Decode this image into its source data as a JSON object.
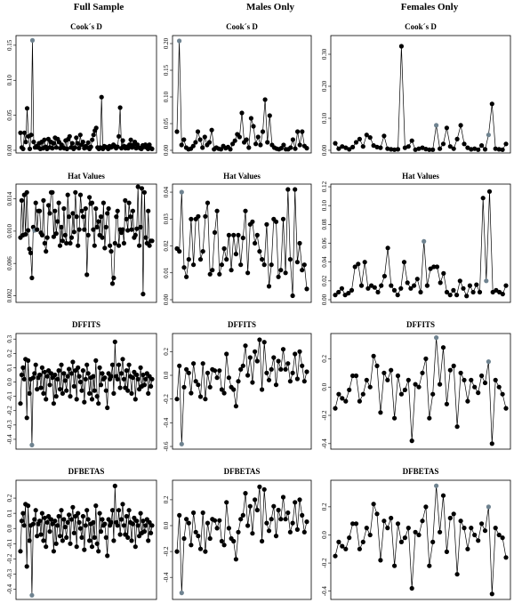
{
  "column_titles": [
    "Full Sample",
    "Males Only",
    "Females Only"
  ],
  "colors": {
    "point": "#000000",
    "highlight": "#6f8390",
    "line": "#000000"
  },
  "chart_data": [
    {
      "type": "line",
      "title": "Cook´s D",
      "ylim": [
        0,
        0.16
      ],
      "yticks": [
        "0.00",
        "0.05",
        "0.10",
        "0.15"
      ],
      "ytick_values": [
        0,
        0.05,
        0.1,
        0.15
      ],
      "highlight": [
        9
      ],
      "values": [
        0.025,
        0.004,
        0.002,
        0.025,
        0.012,
        0.06,
        0.02,
        0.002,
        0.022,
        0.157,
        0.012,
        0.004,
        0.006,
        0.004,
        0.01,
        0.002,
        0.012,
        0.003,
        0.015,
        0.005,
        0.002,
        0.016,
        0.004,
        0.012,
        0.003,
        0.01,
        0.018,
        0.004,
        0.016,
        0.012,
        0.003,
        0.008,
        0.004,
        0.003,
        0.014,
        0.002,
        0.016,
        0.02,
        0.004,
        0.01,
        0.002,
        0.004,
        0.018,
        0.01,
        0.003,
        0.022,
        0.008,
        0.012,
        0.003,
        0.006,
        0.004,
        0.011,
        0.002,
        0.005,
        0.015,
        0.022,
        0.028,
        0.032,
        0.004,
        0.002,
        0.004,
        0.076,
        0.002,
        0.006,
        0.005,
        0.004,
        0.002,
        0.006,
        0.004,
        0.005,
        0.008,
        0.006,
        0.003,
        0.005,
        0.02,
        0.061,
        0.003,
        0.014,
        0.006,
        0.003,
        0.005,
        0.003,
        0.008,
        0.015,
        0.004,
        0.008,
        0.012,
        0.003,
        0.008,
        0.004,
        0.003,
        0.002,
        0.007,
        0.005,
        0.008,
        0.004,
        0.002,
        0.008,
        0.003,
        0.002
      ]
    },
    {
      "type": "line",
      "title": "Cook´s D",
      "ylim": [
        0,
        0.21
      ],
      "yticks": [
        "0.00",
        "0.05",
        "0.10",
        "0.15",
        "0.20"
      ],
      "ytick_values": [
        0,
        0.05,
        0.1,
        0.15,
        0.2
      ],
      "highlight": [
        1
      ],
      "values": [
        0.035,
        0.205,
        0.01,
        0.02,
        0.005,
        0.002,
        0.003,
        0.008,
        0.015,
        0.035,
        0.02,
        0.005,
        0.025,
        0.01,
        0.015,
        0.038,
        0.002,
        0.005,
        0.003,
        0.002,
        0.008,
        0.004,
        0.006,
        0.002,
        0.012,
        0.018,
        0.03,
        0.025,
        0.07,
        0.015,
        0.02,
        0.005,
        0.06,
        0.045,
        0.012,
        0.025,
        0.01,
        0.035,
        0.095,
        0.015,
        0.065,
        0.01,
        0.005,
        0.003,
        0.002,
        0.004,
        0.01,
        0.002,
        0.002,
        0.005,
        0.02,
        0.003,
        0.035,
        0.01,
        0.035,
        0.008,
        0.004
      ]
    },
    {
      "type": "line",
      "title": "Cook´s D",
      "ylim": [
        0,
        0.35
      ],
      "yticks": [
        "0.00",
        "0.10",
        "0.20",
        "0.30"
      ],
      "ytick_values": [
        0,
        0.1,
        0.2,
        0.3
      ],
      "highlight": [
        29,
        44
      ],
      "values": [
        0.022,
        0.005,
        0.012,
        0.008,
        0.003,
        0.01,
        0.025,
        0.035,
        0.012,
        0.048,
        0.04,
        0.015,
        0.01,
        0.008,
        0.045,
        0.005,
        0.003,
        0.002,
        0.003,
        0.325,
        0.008,
        0.012,
        0.03,
        0.002,
        0.005,
        0.008,
        0.004,
        0.002,
        0.002,
        0.078,
        0.005,
        0.02,
        0.07,
        0.012,
        0.005,
        0.035,
        0.078,
        0.02,
        0.008,
        0.003,
        0.005,
        0.002,
        0.015,
        0.003,
        0.048,
        0.145,
        0.005,
        0.003,
        0.002,
        0.02
      ]
    },
    {
      "type": "line",
      "title": "Hat Values",
      "ylim": [
        0.0015,
        0.0155
      ],
      "yticks": [
        "0.002",
        "0.006",
        "0.010",
        "0.014"
      ],
      "ytick_values": [
        0.002,
        0.006,
        0.01,
        0.014
      ],
      "highlight": [
        11
      ],
      "values": [
        0.0092,
        0.0138,
        0.0095,
        0.0145,
        0.0096,
        0.0148,
        0.0101,
        0.0078,
        0.0073,
        0.0042,
        0.0105,
        0.0101,
        0.0135,
        0.0102,
        0.0125,
        0.0125,
        0.0098,
        0.0095,
        0.0138,
        0.0085,
        0.0075,
        0.0092,
        0.0132,
        0.0122,
        0.0148,
        0.0148,
        0.0093,
        0.0125,
        0.0097,
        0.0112,
        0.0135,
        0.0082,
        0.0105,
        0.0088,
        0.0128,
        0.0095,
        0.0085,
        0.0145,
        0.0118,
        0.0085,
        0.0092,
        0.0122,
        0.0099,
        0.0148,
        0.0118,
        0.0082,
        0.0102,
        0.0145,
        0.0125,
        0.0118,
        0.0102,
        0.0128,
        0.0046,
        0.0095,
        0.0142,
        0.0134,
        0.0135,
        0.0102,
        0.0082,
        0.0128,
        0.0105,
        0.0112,
        0.0095,
        0.0118,
        0.0092,
        0.0135,
        0.0079,
        0.0105,
        0.0122,
        0.0128,
        0.0082,
        0.0075,
        0.0035,
        0.0042,
        0.0085,
        0.0118,
        0.0125,
        0.0082,
        0.0102,
        0.0098,
        0.0102,
        0.0085,
        0.0138,
        0.0115,
        0.0101,
        0.0135,
        0.0118,
        0.0102,
        0.0125,
        0.0092,
        0.0095,
        0.0103,
        0.0155,
        0.0082,
        0.0105,
        0.0153,
        0.0022,
        0.0148,
        0.0092,
        0.0085,
        0.0125,
        0.0082,
        0.0088,
        0.0088
      ]
    },
    {
      "type": "line",
      "title": "Hat Values",
      "ylim": [
        0,
        0.042
      ],
      "yticks": [
        "0.00",
        "0.01",
        "0.02",
        "0.03",
        "0.04"
      ],
      "ytick_values": [
        0,
        0.01,
        0.02,
        0.03,
        0.04
      ],
      "highlight": [
        2
      ],
      "values": [
        0.019,
        0.018,
        0.04,
        0.012,
        0.0085,
        0.015,
        0.03,
        0.013,
        0.03,
        0.031,
        0.015,
        0.018,
        0.031,
        0.036,
        0.0095,
        0.011,
        0.025,
        0.033,
        0.0095,
        0.013,
        0.019,
        0.015,
        0.024,
        0.011,
        0.024,
        0.017,
        0.024,
        0.013,
        0.023,
        0.033,
        0.01,
        0.028,
        0.029,
        0.021,
        0.024,
        0.018,
        0.015,
        0.013,
        0.028,
        0.005,
        0.013,
        0.03,
        0.029,
        0.0085,
        0.011,
        0.03,
        0.01,
        0.041,
        0.015,
        0.0015,
        0.041,
        0.014,
        0.021,
        0.011,
        0.013,
        0.004
      ]
    },
    {
      "type": "line",
      "title": "Hat Values",
      "ylim": [
        0,
        0.12
      ],
      "yticks": [
        "0.00",
        "0.02",
        "0.04",
        "0.06",
        "0.08",
        "0.10",
        "0.12"
      ],
      "ytick_values": [
        0,
        0.02,
        0.04,
        0.06,
        0.08,
        0.1,
        0.12
      ],
      "highlight": [
        27,
        46
      ],
      "values": [
        0.005,
        0.008,
        0.012,
        0.005,
        0.007,
        0.01,
        0.035,
        0.038,
        0.015,
        0.04,
        0.012,
        0.015,
        0.013,
        0.008,
        0.015,
        0.025,
        0.055,
        0.015,
        0.01,
        0.005,
        0.012,
        0.04,
        0.018,
        0.012,
        0.015,
        0.022,
        0.008,
        0.062,
        0.015,
        0.033,
        0.035,
        0.035,
        0.018,
        0.028,
        0.008,
        0.005,
        0.01,
        0.005,
        0.02,
        0.012,
        0.004,
        0.015,
        0.008,
        0.016,
        0.008,
        0.108,
        0.02,
        0.115,
        0.008,
        0.01,
        0.008,
        0.006,
        0.015
      ]
    },
    {
      "type": "line",
      "title": "DFFITS",
      "ylim": [
        -0.45,
        0.32
      ],
      "yticks": [
        "-0.4",
        "-0.3",
        "-0.2",
        "-0.1",
        "0.0",
        "0.1",
        "0.2",
        "0.3"
      ],
      "ytick_values": [
        -0.4,
        -0.3,
        -0.2,
        -0.1,
        0,
        0.1,
        0.2,
        0.3
      ],
      "highlight": [
        9
      ],
      "values": [
        -0.15,
        0.05,
        0.1,
        0.02,
        0.16,
        -0.25,
        0.15,
        -0.08,
        0.02,
        -0.44,
        0.03,
        0.06,
        0.12,
        -0.05,
        0.03,
        0.05,
        -0.04,
        0.1,
        -0.08,
        0.07,
        -0.12,
        0.04,
        0.08,
        -0.02,
        0.06,
        0.03,
        -0.15,
        0.05,
        -0.1,
        0.02,
        0.08,
        -0.05,
        0.12,
        -0.08,
        0.06,
        0.01,
        -0.06,
        0.04,
        0.09,
        -0.1,
        0.06,
        0.14,
        -0.03,
        0.08,
        -0.12,
        0.1,
        0.04,
        0.0,
        -0.06,
        0.08,
        -0.14,
        0.02,
        0.12,
        0.06,
        -0.08,
        0.03,
        -0.12,
        0.04,
        -0.06,
        0.15,
        -0.1,
        -0.15,
        0.1,
        -0.02,
        0.06,
        0.02,
        0.03,
        -0.06,
        -0.18,
        0.06,
        0.02,
        0.04,
        0.12,
        -0.08,
        0.28,
        0.04,
        0.02,
        0.12,
        -0.04,
        0.06,
        0.16,
        0.02,
        -0.04,
        0.08,
        -0.06,
        0.12,
        0.04,
        -0.08,
        0.03,
        0.07,
        -0.12,
        0.05,
        0.02,
        -0.05,
        0.1,
        -0.03,
        0.05,
        -0.02,
        0.02,
        0.06,
        -0.08,
        0.04,
        -0.03,
        0.02
      ]
    },
    {
      "type": "line",
      "title": "DFFITS",
      "ylim": [
        -0.6,
        0.33
      ],
      "yticks": [
        "-0.6",
        "-0.4",
        "-0.2",
        "0.0",
        "0.2"
      ],
      "ytick_values": [
        -0.6,
        -0.4,
        -0.2,
        0,
        0.2
      ],
      "highlight": [
        2
      ],
      "values": [
        -0.2,
        0.08,
        -0.58,
        -0.1,
        0.05,
        0.02,
        -0.15,
        0.1,
        -0.05,
        -0.08,
        -0.18,
        0.1,
        -0.2,
        0.02,
        -0.1,
        0.05,
        0.04,
        -0.02,
        0.04,
        -0.12,
        -0.15,
        0.18,
        -0.02,
        -0.1,
        -0.12,
        -0.26,
        -0.05,
        0.05,
        0.08,
        0.25,
        0.0,
        0.15,
        -0.06,
        0.2,
        0.12,
        0.3,
        -0.12,
        0.28,
        0.02,
        -0.04,
        0.05,
        0.15,
        -0.08,
        0.12,
        0.05,
        0.22,
        0.05,
        0.1,
        -0.05,
        0.02,
        0.18,
        -0.03,
        0.2,
        0.08,
        -0.05,
        0.03
      ]
    },
    {
      "type": "line",
      "title": "DFFITS",
      "ylim": [
        -0.42,
        0.36
      ],
      "yticks": [
        "-0.4",
        "-0.2",
        "0.0",
        "0.2"
      ],
      "ytick_values": [
        -0.4,
        -0.2,
        0,
        0.2
      ],
      "highlight": [
        29,
        44
      ],
      "values": [
        -0.15,
        -0.05,
        -0.08,
        -0.1,
        -0.02,
        0.08,
        0.08,
        -0.1,
        -0.05,
        0.05,
        0.0,
        0.22,
        0.15,
        -0.18,
        0.1,
        0.05,
        0.12,
        -0.22,
        0.08,
        -0.05,
        -0.02,
        0.05,
        -0.38,
        0.02,
        0.0,
        0.1,
        0.2,
        -0.22,
        -0.05,
        0.35,
        0.02,
        0.28,
        -0.12,
        0.12,
        0.15,
        -0.28,
        0.1,
        0.05,
        -0.1,
        0.05,
        0.0,
        -0.04,
        0.08,
        0.03,
        0.18,
        -0.4,
        0.05,
        0.0,
        -0.05,
        -0.15
      ]
    },
    {
      "type": "line",
      "title": "DFBETAS",
      "ylim": [
        -0.45,
        0.3
      ],
      "yticks": [
        "-0.4",
        "-0.3",
        "-0.2",
        "-0.1",
        "0.0",
        "0.1",
        "0.2"
      ],
      "ytick_values": [
        -0.4,
        -0.3,
        -0.2,
        -0.1,
        0,
        0.1,
        0.2
      ],
      "highlight": [
        9
      ],
      "values": [
        -0.15,
        0.05,
        0.1,
        0.02,
        0.16,
        -0.25,
        0.15,
        -0.08,
        0.02,
        -0.44,
        0.03,
        0.06,
        0.12,
        -0.05,
        0.03,
        0.05,
        -0.04,
        0.1,
        -0.08,
        0.07,
        -0.12,
        0.04,
        0.08,
        -0.02,
        0.06,
        0.03,
        -0.15,
        0.05,
        -0.1,
        0.02,
        0.08,
        -0.05,
        0.12,
        -0.08,
        0.06,
        0.01,
        -0.06,
        0.04,
        0.09,
        -0.1,
        0.06,
        0.14,
        -0.03,
        0.08,
        -0.12,
        0.1,
        0.04,
        0.0,
        -0.06,
        0.08,
        -0.14,
        0.02,
        0.12,
        0.06,
        -0.08,
        0.03,
        -0.12,
        0.04,
        -0.06,
        0.15,
        -0.1,
        -0.15,
        0.1,
        -0.02,
        0.06,
        0.02,
        0.03,
        -0.06,
        -0.18,
        0.06,
        0.02,
        0.04,
        0.12,
        -0.08,
        0.28,
        0.04,
        0.02,
        0.12,
        -0.04,
        0.06,
        0.16,
        0.02,
        -0.04,
        0.08,
        -0.06,
        0.12,
        0.04,
        -0.08,
        0.03,
        0.07,
        -0.12,
        0.05,
        0.02,
        -0.05,
        0.1,
        -0.03,
        0.05,
        -0.02,
        0.02,
        0.06,
        -0.08,
        0.04,
        -0.03,
        0.02
      ]
    },
    {
      "type": "line",
      "title": "DFBETAS",
      "ylim": [
        -0.55,
        0.33
      ],
      "yticks": [
        "-0.4",
        "-0.2",
        "0.0",
        "0.2"
      ],
      "ytick_values": [
        -0.4,
        -0.2,
        0,
        0.2
      ],
      "highlight": [
        2
      ],
      "values": [
        -0.2,
        0.08,
        -0.52,
        -0.1,
        0.05,
        0.02,
        -0.15,
        0.1,
        -0.05,
        -0.08,
        -0.18,
        0.1,
        -0.2,
        0.02,
        -0.1,
        0.05,
        0.04,
        -0.02,
        0.04,
        -0.12,
        -0.15,
        0.18,
        -0.02,
        -0.1,
        -0.12,
        -0.26,
        -0.05,
        0.05,
        0.08,
        0.25,
        0.0,
        0.15,
        -0.06,
        0.2,
        0.12,
        0.3,
        -0.12,
        0.28,
        0.02,
        -0.04,
        0.05,
        0.15,
        -0.08,
        0.12,
        0.05,
        0.22,
        0.05,
        0.1,
        -0.05,
        0.02,
        0.18,
        -0.03,
        0.2,
        0.08,
        -0.05,
        0.03
      ]
    },
    {
      "type": "line",
      "title": "DFBETAS",
      "ylim": [
        -0.44,
        0.37
      ],
      "yticks": [
        "-0.4",
        "-0.2",
        "0.0",
        "0.2"
      ],
      "ytick_values": [
        -0.4,
        -0.2,
        0,
        0.2
      ],
      "highlight": [
        29,
        44
      ],
      "values": [
        -0.15,
        -0.05,
        -0.08,
        -0.1,
        -0.02,
        0.08,
        0.08,
        -0.1,
        -0.05,
        0.05,
        0.0,
        0.22,
        0.15,
        -0.18,
        0.1,
        0.05,
        0.12,
        -0.22,
        0.08,
        -0.05,
        -0.02,
        0.05,
        -0.38,
        0.02,
        0.0,
        0.1,
        0.2,
        -0.22,
        -0.05,
        0.35,
        0.02,
        0.28,
        -0.12,
        0.12,
        0.15,
        -0.28,
        0.1,
        0.05,
        -0.1,
        0.05,
        0.0,
        -0.04,
        0.08,
        0.03,
        0.2,
        -0.42,
        0.05,
        0.0,
        -0.02,
        -0.16
      ]
    }
  ]
}
